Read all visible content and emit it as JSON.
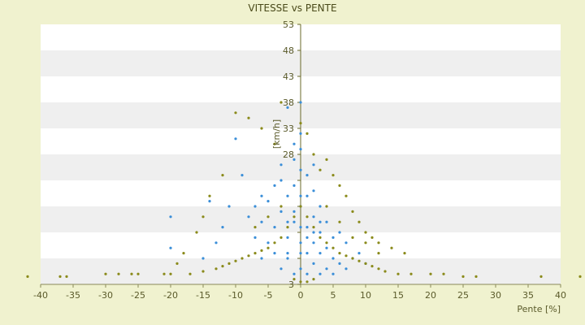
{
  "chart_data": {
    "type": "scatter",
    "title": "VITESSE vs PENTE",
    "xlabel": "Pente [%]",
    "ylabel": "[km/h]",
    "xlim": [
      -40,
      40
    ],
    "ylim": [
      3,
      53
    ],
    "x_ticks": [
      -40,
      -35,
      -30,
      -25,
      -20,
      -15,
      -10,
      -5,
      0,
      5,
      10,
      15,
      20,
      25,
      30,
      35,
      40
    ],
    "y_ticks": [
      3,
      8,
      13,
      18,
      23,
      28,
      33,
      38,
      43,
      48,
      53
    ],
    "y_tick_labels": [
      "3",
      "",
      "",
      "",
      "",
      "28",
      "33",
      "38",
      "43",
      "48",
      "53"
    ],
    "grid": "horizontal bands",
    "series": [
      {
        "color": "#3a8ed8",
        "points": [
          [
            -2,
            12
          ],
          [
            -1,
            15
          ],
          [
            0,
            18
          ],
          [
            1,
            14
          ],
          [
            2,
            11
          ],
          [
            3,
            13
          ],
          [
            -3,
            17
          ],
          [
            -4,
            14
          ],
          [
            -1,
            22
          ],
          [
            0,
            25
          ],
          [
            1,
            20
          ],
          [
            2,
            16
          ],
          [
            3,
            9
          ],
          [
            4,
            10
          ],
          [
            5,
            8
          ],
          [
            -5,
            19
          ],
          [
            -6,
            15
          ],
          [
            -7,
            12
          ],
          [
            -8,
            16
          ],
          [
            -9,
            24
          ],
          [
            -10,
            31
          ],
          [
            -1,
            30
          ],
          [
            0,
            32
          ],
          [
            -2,
            37
          ],
          [
            -3,
            26
          ],
          [
            -4,
            22
          ],
          [
            6,
            7
          ],
          [
            7,
            6
          ],
          [
            8,
            8
          ],
          [
            9,
            9
          ],
          [
            10,
            7
          ],
          [
            -11,
            18
          ],
          [
            -12,
            14
          ],
          [
            -13,
            11
          ],
          [
            -14,
            19
          ],
          [
            -15,
            8
          ],
          [
            -20,
            16
          ],
          [
            -20,
            10
          ],
          [
            0,
            6
          ],
          [
            1,
            5
          ],
          [
            -1,
            5
          ],
          [
            2,
            7
          ],
          [
            -2,
            8
          ],
          [
            3,
            5
          ],
          [
            4,
            6
          ],
          [
            5,
            5
          ],
          [
            -3,
            6
          ],
          [
            -4,
            9
          ],
          [
            -5,
            11
          ],
          [
            -6,
            8
          ],
          [
            0,
            11
          ],
          [
            0,
            14
          ],
          [
            1,
            9
          ],
          [
            2,
            21
          ],
          [
            -1,
            27
          ],
          [
            0,
            29
          ],
          [
            -2,
            20
          ],
          [
            -3,
            23
          ],
          [
            4,
            15
          ],
          [
            5,
            12
          ],
          [
            6,
            13
          ],
          [
            7,
            11
          ],
          [
            -6,
            20
          ],
          [
            -7,
            18
          ],
          [
            3,
            18
          ],
          [
            0,
            38
          ],
          [
            0,
            20
          ],
          [
            1,
            24
          ],
          [
            2,
            26
          ],
          [
            -1,
            17
          ],
          [
            -2,
            15
          ],
          [
            1,
            12
          ],
          [
            2,
            13
          ],
          [
            3,
            15
          ],
          [
            -2,
            9
          ],
          [
            0,
            9
          ]
        ]
      },
      {
        "color": "#8a8a1a",
        "points": [
          [
            -42,
            4.5
          ],
          [
            -37,
            4.5
          ],
          [
            -36,
            4.5
          ],
          [
            -30,
            5
          ],
          [
            -28,
            5
          ],
          [
            -26,
            5
          ],
          [
            -25,
            5
          ],
          [
            -21,
            5
          ],
          [
            -20,
            5
          ],
          [
            -17,
            5
          ],
          [
            -15,
            5.5
          ],
          [
            -13,
            6
          ],
          [
            -12,
            6.5
          ],
          [
            -11,
            7
          ],
          [
            -10,
            7.5
          ],
          [
            -9,
            8
          ],
          [
            -8,
            8.5
          ],
          [
            -7,
            9
          ],
          [
            -6,
            9.5
          ],
          [
            -5,
            10
          ],
          [
            -4,
            11
          ],
          [
            -3,
            12
          ],
          [
            -2,
            14
          ],
          [
            -1,
            16
          ],
          [
            0,
            18
          ],
          [
            1,
            16
          ],
          [
            2,
            14
          ],
          [
            3,
            12
          ],
          [
            4,
            11
          ],
          [
            5,
            10
          ],
          [
            6,
            9
          ],
          [
            7,
            8.5
          ],
          [
            8,
            8
          ],
          [
            9,
            7.5
          ],
          [
            10,
            7
          ],
          [
            11,
            6.5
          ],
          [
            12,
            6
          ],
          [
            13,
            5.5
          ],
          [
            15,
            5
          ],
          [
            17,
            5
          ],
          [
            20,
            5
          ],
          [
            22,
            5
          ],
          [
            25,
            4.5
          ],
          [
            27,
            4.5
          ],
          [
            37,
            4.5
          ],
          [
            43,
            4.5
          ],
          [
            -10,
            36
          ],
          [
            -8,
            35
          ],
          [
            -6,
            33
          ],
          [
            -4,
            30
          ],
          [
            -3,
            38
          ],
          [
            0,
            34
          ],
          [
            1,
            32
          ],
          [
            2,
            28
          ],
          [
            3,
            25
          ],
          [
            4,
            27
          ],
          [
            5,
            24
          ],
          [
            6,
            22
          ],
          [
            7,
            20
          ],
          [
            8,
            17
          ],
          [
            9,
            15
          ],
          [
            10,
            13
          ],
          [
            11,
            12
          ],
          [
            12,
            11
          ],
          [
            14,
            10
          ],
          [
            16,
            9
          ],
          [
            -12,
            24
          ],
          [
            -14,
            20
          ],
          [
            -15,
            16
          ],
          [
            -16,
            13
          ],
          [
            -18,
            9
          ],
          [
            -19,
            7
          ],
          [
            2,
            4
          ],
          [
            -1,
            4
          ],
          [
            0,
            3.5
          ],
          [
            1,
            3.5
          ],
          [
            -7,
            14
          ],
          [
            -5,
            16
          ],
          [
            -3,
            18
          ],
          [
            4,
            18
          ],
          [
            6,
            15
          ],
          [
            8,
            12
          ],
          [
            10,
            11
          ],
          [
            12,
            9
          ]
        ]
      }
    ]
  }
}
